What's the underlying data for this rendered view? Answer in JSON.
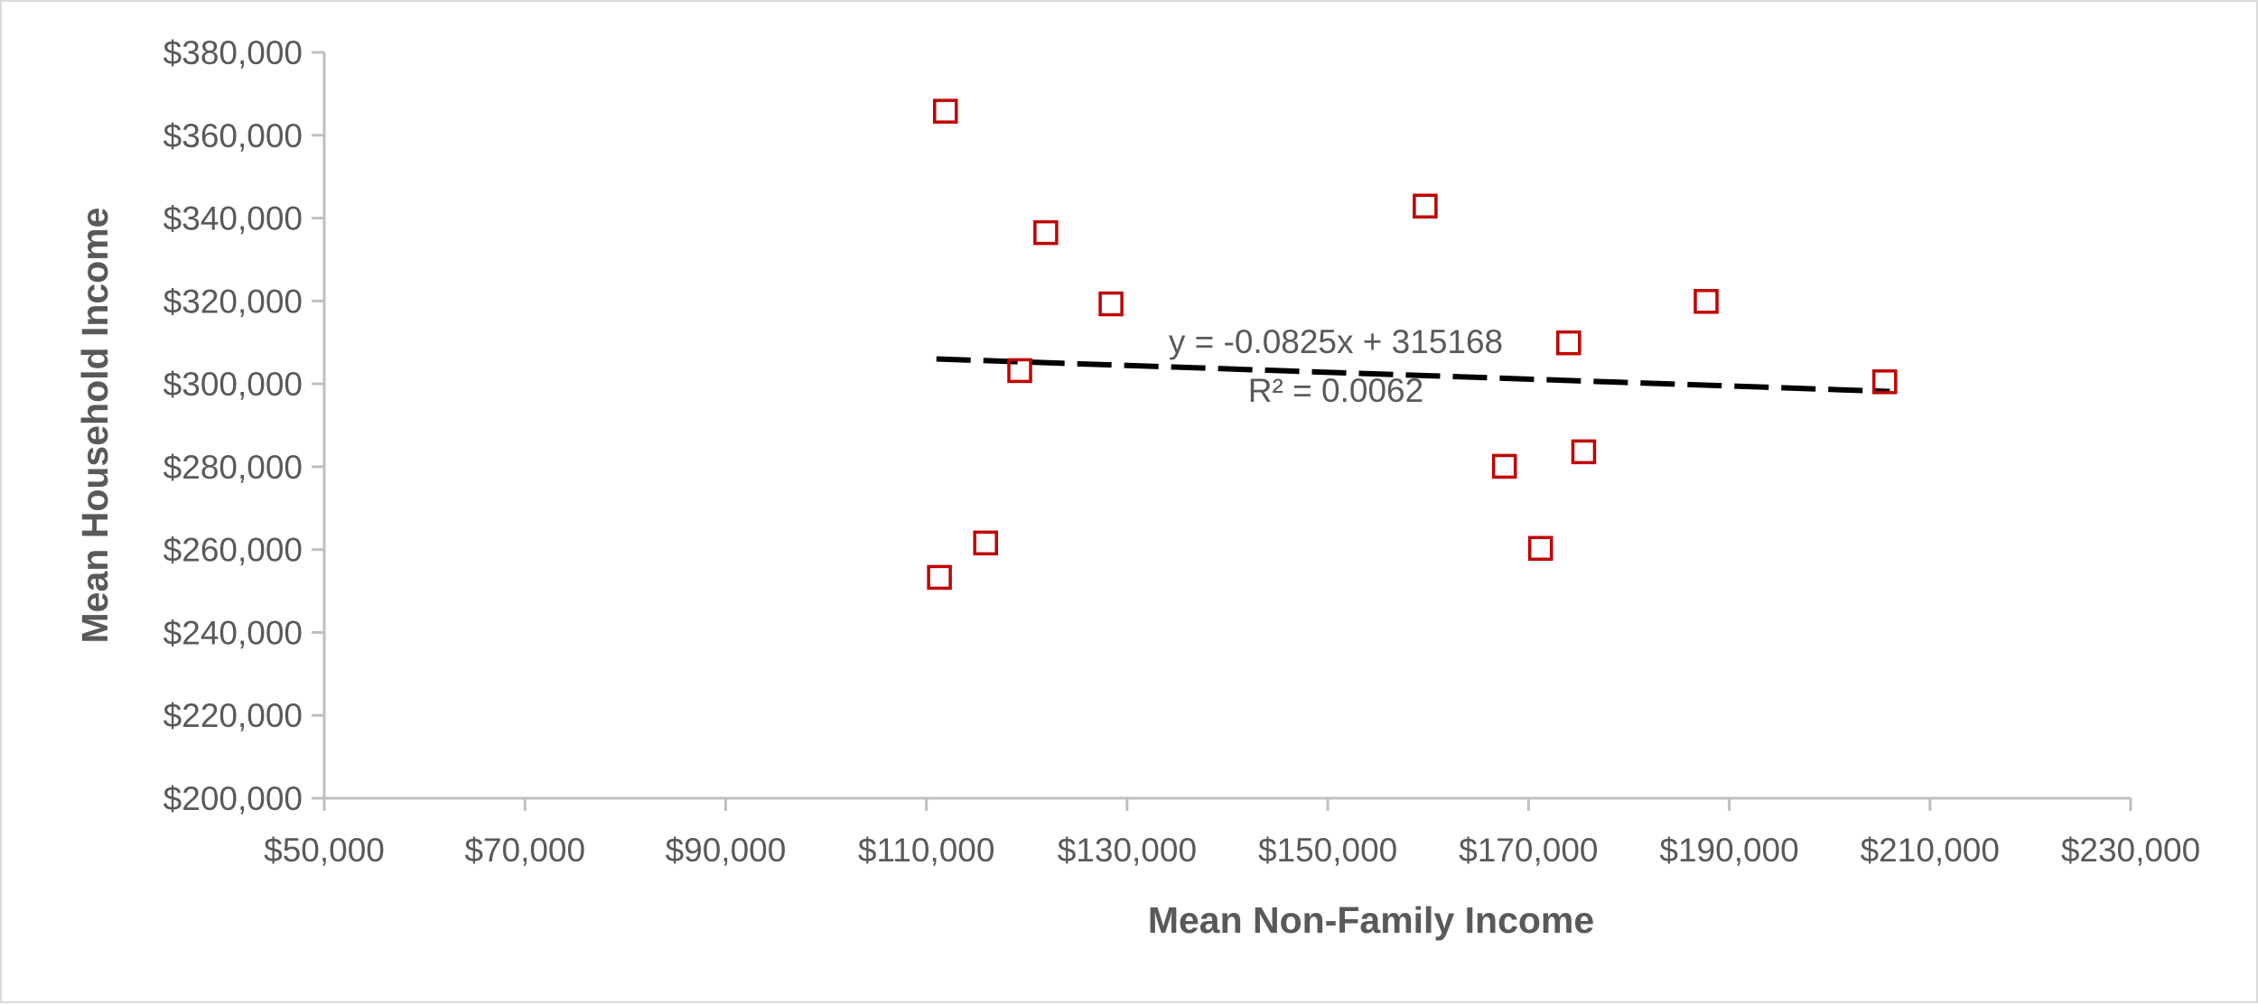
{
  "chart_data": {
    "type": "scatter",
    "xlabel": "Mean Non-Family Income",
    "ylabel": "Mean Household Income",
    "xlim": [
      50000,
      230000
    ],
    "ylim": [
      200000,
      380000
    ],
    "x_ticks": [
      50000,
      70000,
      90000,
      110000,
      130000,
      150000,
      170000,
      190000,
      210000,
      230000
    ],
    "y_ticks": [
      200000,
      220000,
      240000,
      260000,
      280000,
      300000,
      320000,
      340000,
      360000,
      380000
    ],
    "x_tick_labels": [
      "$50,000",
      "$70,000",
      "$90,000",
      "$110,000",
      "$130,000",
      "$150,000",
      "$170,000",
      "$190,000",
      "$210,000",
      "$230,000"
    ],
    "y_tick_labels": [
      "$200,000",
      "$220,000",
      "$240,000",
      "$260,000",
      "$280,000",
      "$300,000",
      "$320,000",
      "$340,000",
      "$360,000",
      "$380,000"
    ],
    "grid": false,
    "legend": "none",
    "marker": "hollow-square",
    "marker_color": "#c00000",
    "points": [
      {
        "x": 111900,
        "y": 365800
      },
      {
        "x": 111300,
        "y": 253300
      },
      {
        "x": 115900,
        "y": 261600
      },
      {
        "x": 119300,
        "y": 303200
      },
      {
        "x": 121900,
        "y": 336500
      },
      {
        "x": 128400,
        "y": 319300
      },
      {
        "x": 159700,
        "y": 342900
      },
      {
        "x": 167600,
        "y": 280100
      },
      {
        "x": 171200,
        "y": 260300
      },
      {
        "x": 174000,
        "y": 309900
      },
      {
        "x": 175500,
        "y": 283600
      },
      {
        "x": 187700,
        "y": 319900
      },
      {
        "x": 205500,
        "y": 300500
      }
    ],
    "trendline": {
      "type": "linear",
      "slope": -0.0825,
      "intercept": 315168,
      "x_range": [
        111000,
        206000
      ],
      "color": "#000000",
      "style": "dashed",
      "equation": "y = -0.0825x + 315168",
      "r_squared": "R² = 0.0062"
    }
  }
}
